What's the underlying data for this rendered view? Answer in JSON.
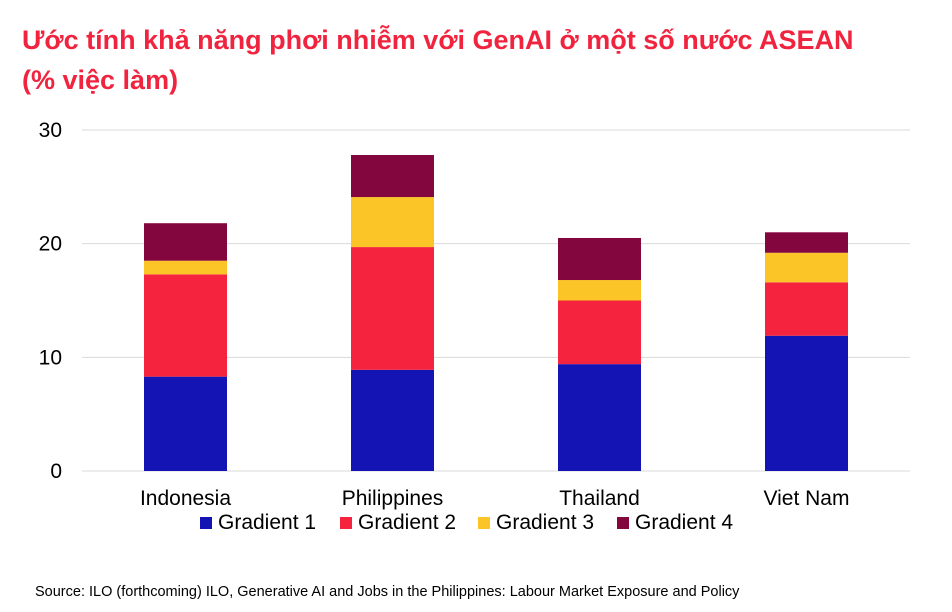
{
  "title": {
    "line1": "Ước tính khả năng phơi nhiễm với GenAI ở một số nước ASEAN",
    "line2": "(% việc làm)"
  },
  "source": "Source: ILO (forthcoming) ILO, Generative AI and Jobs in the Philippines: Labour Market Exposure and Policy",
  "colors": {
    "title": "#f0243f",
    "gridline": "#d9d9d9"
  },
  "chart_data": {
    "type": "bar",
    "stacked": true,
    "categories": [
      "Indonesia",
      "Philippines",
      "Thailand",
      "Viet Nam"
    ],
    "series": [
      {
        "name": "Gradient 1",
        "color": "#1414b4",
        "values": [
          8.3,
          8.9,
          9.4,
          11.9
        ]
      },
      {
        "name": "Gradient 2",
        "color": "#f5233e",
        "values": [
          9.0,
          10.8,
          5.6,
          4.7
        ]
      },
      {
        "name": "Gradient 3",
        "color": "#fcc527",
        "values": [
          1.2,
          4.4,
          1.8,
          2.6
        ]
      },
      {
        "name": "Gradient 4",
        "color": "#84063f",
        "values": [
          3.3,
          3.7,
          3.7,
          1.8
        ]
      }
    ],
    "yticks": [
      0,
      10,
      20,
      30
    ],
    "ylim": [
      0,
      30
    ],
    "grid": true,
    "legend": "bottom"
  }
}
